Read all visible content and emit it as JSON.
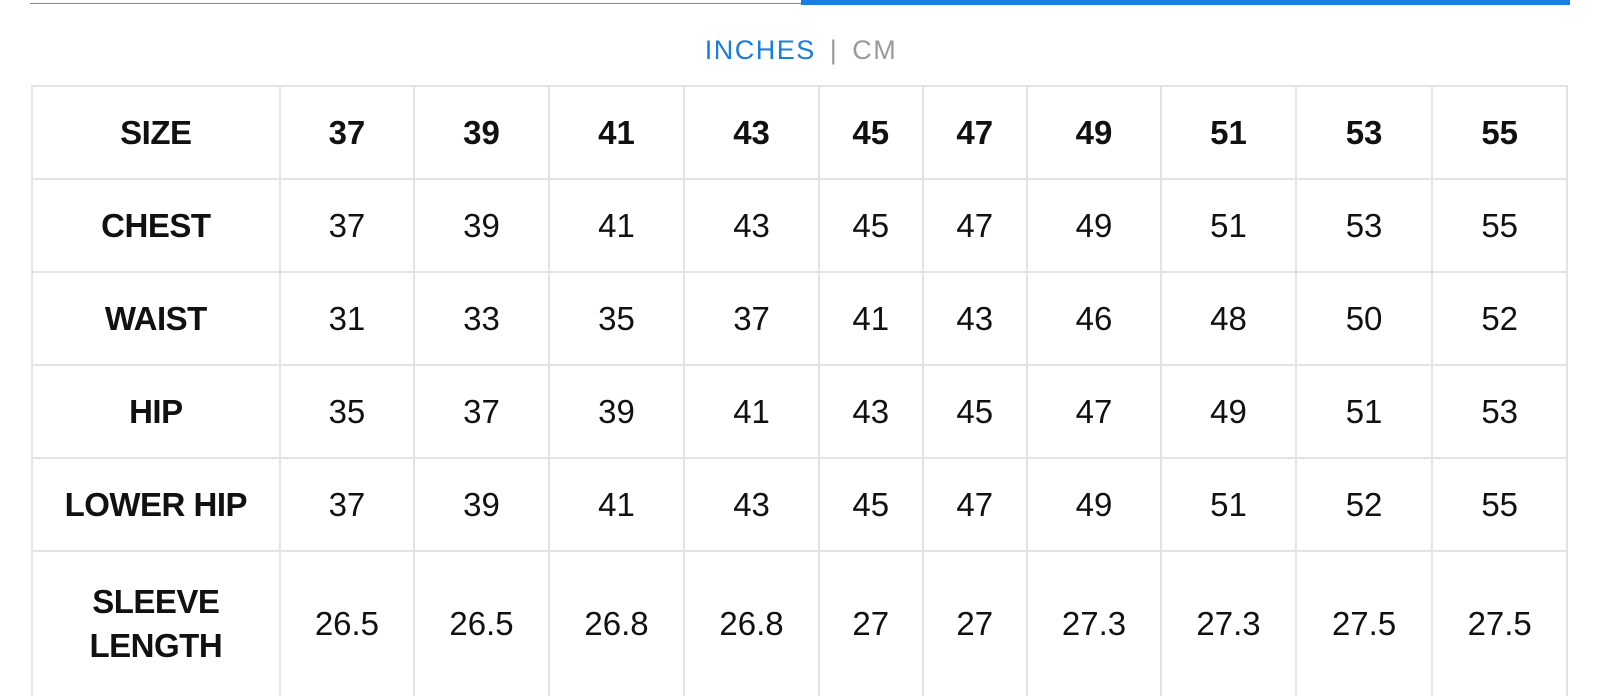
{
  "unit_toggle": {
    "inches_label": "INCHES",
    "separator": "|",
    "cm_label": "CM",
    "active": "INCHES"
  },
  "colors": {
    "accent": "#1a7de0",
    "inactive_text": "#9a9a9a",
    "grid_border": "#e3e3e3",
    "text": "#111111"
  },
  "table": {
    "header": {
      "label": "SIZE",
      "values": [
        "37",
        "39",
        "41",
        "43",
        "45",
        "47",
        "49",
        "51",
        "53",
        "55"
      ]
    },
    "rows": [
      {
        "label": "CHEST",
        "values": [
          "37",
          "39",
          "41",
          "43",
          "45",
          "47",
          "49",
          "51",
          "53",
          "55"
        ]
      },
      {
        "label": "WAIST",
        "values": [
          "31",
          "33",
          "35",
          "37",
          "41",
          "43",
          "46",
          "48",
          "50",
          "52"
        ]
      },
      {
        "label": "HIP",
        "values": [
          "35",
          "37",
          "39",
          "41",
          "43",
          "45",
          "47",
          "49",
          "51",
          "53"
        ]
      },
      {
        "label": "LOWER HIP",
        "values": [
          "37",
          "39",
          "41",
          "43",
          "45",
          "47",
          "49",
          "51",
          "52",
          "55"
        ]
      },
      {
        "label_line1": "SLEEVE",
        "label_line2": "LENGTH",
        "values": [
          "26.5",
          "26.5",
          "26.8",
          "26.8",
          "27",
          "27",
          "27.3",
          "27.3",
          "27.5",
          "27.5"
        ]
      }
    ]
  }
}
